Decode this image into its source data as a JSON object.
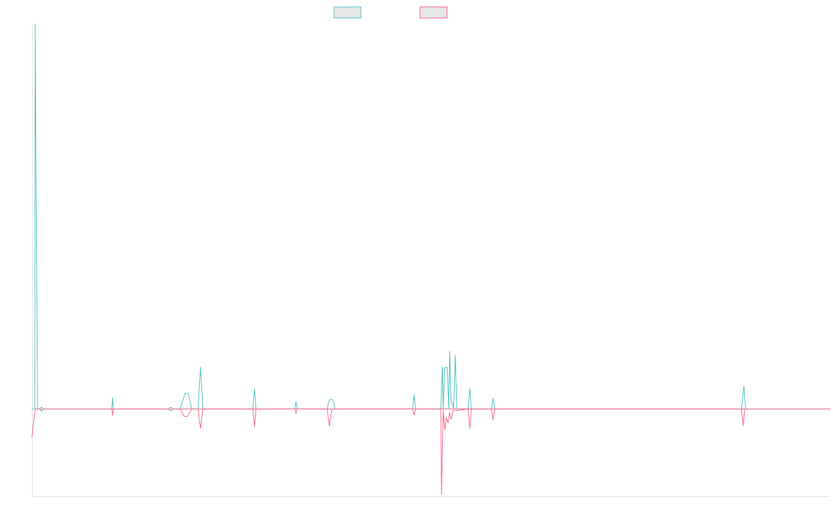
{
  "chart_data": {
    "type": "line",
    "title": "",
    "xlabel": "",
    "ylabel": "",
    "ylim": [
      -25,
      110
    ],
    "legend": {
      "placement": "top-center"
    },
    "grid": false,
    "series": [
      {
        "name": "",
        "color": "#4bc0c0",
        "fill": "#e6e6e6",
        "points": [
          [
            0,
            0
          ],
          [
            0.35,
            0
          ],
          [
            0.4,
            110
          ],
          [
            0.7,
            0
          ],
          [
            99,
            0
          ],
          [
            9.9,
            0
          ],
          [
            10.0,
            3.2
          ],
          [
            10.1,
            0
          ],
          [
            18.4,
            0
          ],
          [
            19.0,
            4.5
          ],
          [
            19.4,
            4.5
          ],
          [
            19.8,
            0
          ],
          [
            20.6,
            0
          ],
          [
            20.9,
            12.0
          ],
          [
            21.2,
            0
          ],
          [
            27.4,
            0
          ],
          [
            27.6,
            5.7
          ],
          [
            27.8,
            0
          ],
          [
            32.6,
            0
          ],
          [
            32.75,
            2.2
          ],
          [
            32.9,
            0
          ],
          [
            36.6,
            0
          ],
          [
            36.9,
            2.7
          ],
          [
            37.3,
            2.7
          ],
          [
            37.6,
            0
          ],
          [
            47.2,
            0
          ],
          [
            47.4,
            4.1
          ],
          [
            47.6,
            0
          ],
          [
            50.7,
            0
          ],
          [
            50.9,
            12.0
          ],
          [
            51.0,
            0
          ],
          [
            51.2,
            11.8
          ],
          [
            51.5,
            11.9
          ],
          [
            51.7,
            0
          ],
          [
            51.8,
            16.5
          ],
          [
            52.0,
            1.9
          ],
          [
            52.1,
            1.9
          ],
          [
            52.3,
            0
          ],
          [
            52.5,
            15.4
          ],
          [
            52.7,
            0
          ],
          [
            54.1,
            0
          ],
          [
            54.3,
            5.9
          ],
          [
            54.5,
            0
          ],
          [
            57.0,
            0
          ],
          [
            57.2,
            3.1
          ],
          [
            57.4,
            0
          ],
          [
            88.0,
            0
          ],
          [
            88.3,
            6.6
          ],
          [
            88.5,
            0
          ]
        ]
      },
      {
        "name": "",
        "color": "#ff6384",
        "fill": "#e6e6e6",
        "points": [
          [
            0,
            -8.2
          ],
          [
            0.4,
            0
          ],
          [
            99,
            0
          ],
          [
            9.9,
            0
          ],
          [
            10.0,
            -1.8
          ],
          [
            10.1,
            0
          ],
          [
            18.4,
            0
          ],
          [
            18.9,
            -2.1
          ],
          [
            19.3,
            -2.1
          ],
          [
            19.8,
            0
          ],
          [
            20.6,
            0
          ],
          [
            20.9,
            -5.6
          ],
          [
            21.2,
            0
          ],
          [
            27.4,
            0
          ],
          [
            27.6,
            -5.0
          ],
          [
            27.8,
            0
          ],
          [
            32.6,
            0
          ],
          [
            32.75,
            -1.3
          ],
          [
            32.9,
            0
          ],
          [
            36.6,
            0
          ],
          [
            36.9,
            -4.9
          ],
          [
            37.2,
            0
          ],
          [
            47.2,
            0
          ],
          [
            47.4,
            -1.7
          ],
          [
            47.6,
            0
          ],
          [
            50.7,
            0
          ],
          [
            50.8,
            -24.5
          ],
          [
            51.0,
            -0.5
          ],
          [
            51.2,
            -6.0
          ],
          [
            51.4,
            -2.5
          ],
          [
            51.6,
            -4.0
          ],
          [
            51.8,
            -1.0
          ],
          [
            52.0,
            -3.0
          ],
          [
            52.2,
            -0.5
          ],
          [
            52.4,
            -0.5
          ],
          [
            54.1,
            0
          ],
          [
            54.3,
            -5.6
          ],
          [
            54.5,
            0
          ],
          [
            57.0,
            0
          ],
          [
            57.2,
            -3.1
          ],
          [
            57.4,
            0
          ],
          [
            88.0,
            0
          ],
          [
            88.2,
            -4.8
          ],
          [
            88.4,
            0
          ]
        ]
      }
    ],
    "markers": [
      [
        1.2,
        0
      ],
      [
        17.2,
        0
      ]
    ],
    "xlim": [
      0,
      99
    ]
  }
}
